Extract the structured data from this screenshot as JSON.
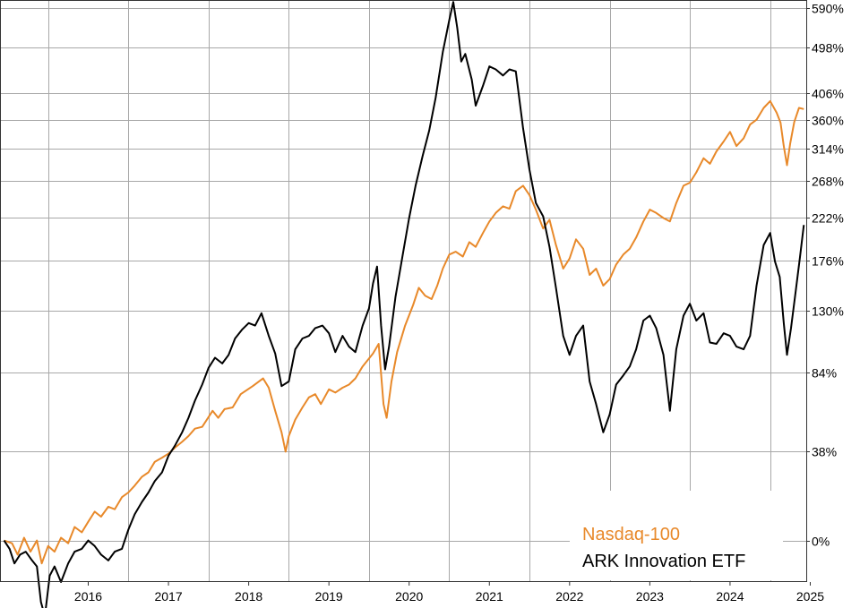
{
  "chart_data": {
    "type": "line",
    "title": "",
    "xlabel": "",
    "ylabel": "",
    "scale": "log(1 + return)",
    "xlim": [
      2015.4,
      2025.45
    ],
    "ylim": [
      "-14%",
      "610%"
    ],
    "x_ticks": [
      "2016",
      "2017",
      "2018",
      "2019",
      "2020",
      "2021",
      "2022",
      "2023",
      "2024",
      "2025"
    ],
    "y_ticks": [
      "590%",
      "498%",
      "406%",
      "360%",
      "314%",
      "268%",
      "222%",
      "176%",
      "130%",
      "84%",
      "38%",
      "0%"
    ],
    "grid": true,
    "legend_position": "bottom-right",
    "colors": {
      "nasdaq": "#e8892a",
      "ark": "#000000"
    },
    "series": [
      {
        "name": "Nasdaq-100",
        "color": "#e8892a",
        "points": [
          [
            2015.45,
            0
          ],
          [
            2015.55,
            -1
          ],
          [
            2015.62,
            -5
          ],
          [
            2015.7,
            1
          ],
          [
            2015.78,
            -4
          ],
          [
            2015.86,
            0
          ],
          [
            2015.92,
            -8
          ],
          [
            2016.0,
            -2
          ],
          [
            2016.08,
            -4
          ],
          [
            2016.16,
            1
          ],
          [
            2016.25,
            -1
          ],
          [
            2016.33,
            5
          ],
          [
            2016.42,
            3
          ],
          [
            2016.5,
            7
          ],
          [
            2016.58,
            11
          ],
          [
            2016.66,
            9
          ],
          [
            2016.75,
            13
          ],
          [
            2016.83,
            12
          ],
          [
            2016.92,
            17
          ],
          [
            2017.0,
            19
          ],
          [
            2017.08,
            22
          ],
          [
            2017.17,
            26
          ],
          [
            2017.25,
            28
          ],
          [
            2017.33,
            33
          ],
          [
            2017.42,
            35
          ],
          [
            2017.5,
            37
          ],
          [
            2017.58,
            40
          ],
          [
            2017.67,
            43
          ],
          [
            2017.75,
            46
          ],
          [
            2017.83,
            50
          ],
          [
            2017.92,
            51
          ],
          [
            2018.05,
            60
          ],
          [
            2018.12,
            56
          ],
          [
            2018.2,
            61
          ],
          [
            2018.3,
            62
          ],
          [
            2018.4,
            70
          ],
          [
            2018.55,
            75
          ],
          [
            2018.68,
            80
          ],
          [
            2018.75,
            74
          ],
          [
            2018.83,
            60
          ],
          [
            2018.91,
            48
          ],
          [
            2018.96,
            38
          ],
          [
            2019.0,
            46
          ],
          [
            2019.08,
            55
          ],
          [
            2019.17,
            62
          ],
          [
            2019.25,
            68
          ],
          [
            2019.33,
            70
          ],
          [
            2019.4,
            64
          ],
          [
            2019.5,
            73
          ],
          [
            2019.58,
            71
          ],
          [
            2019.67,
            74
          ],
          [
            2019.75,
            76
          ],
          [
            2019.83,
            80
          ],
          [
            2019.92,
            88
          ],
          [
            2020.05,
            97
          ],
          [
            2020.12,
            104
          ],
          [
            2020.18,
            64
          ],
          [
            2020.22,
            56
          ],
          [
            2020.28,
            78
          ],
          [
            2020.35,
            98
          ],
          [
            2020.45,
            118
          ],
          [
            2020.55,
            135
          ],
          [
            2020.62,
            150
          ],
          [
            2020.7,
            143
          ],
          [
            2020.78,
            140
          ],
          [
            2020.85,
            152
          ],
          [
            2020.92,
            168
          ],
          [
            2021.0,
            182
          ],
          [
            2021.08,
            185
          ],
          [
            2021.17,
            180
          ],
          [
            2021.25,
            195
          ],
          [
            2021.33,
            190
          ],
          [
            2021.42,
            205
          ],
          [
            2021.5,
            218
          ],
          [
            2021.58,
            228
          ],
          [
            2021.67,
            236
          ],
          [
            2021.75,
            233
          ],
          [
            2021.83,
            255
          ],
          [
            2021.92,
            262
          ],
          [
            2022.0,
            250
          ],
          [
            2022.08,
            232
          ],
          [
            2022.17,
            210
          ],
          [
            2022.25,
            220
          ],
          [
            2022.33,
            192
          ],
          [
            2022.42,
            168
          ],
          [
            2022.5,
            178
          ],
          [
            2022.58,
            198
          ],
          [
            2022.67,
            188
          ],
          [
            2022.75,
            162
          ],
          [
            2022.83,
            168
          ],
          [
            2022.92,
            152
          ],
          [
            2023.0,
            158
          ],
          [
            2023.08,
            172
          ],
          [
            2023.17,
            182
          ],
          [
            2023.25,
            188
          ],
          [
            2023.33,
            200
          ],
          [
            2023.42,
            218
          ],
          [
            2023.5,
            232
          ],
          [
            2023.58,
            228
          ],
          [
            2023.67,
            222
          ],
          [
            2023.75,
            218
          ],
          [
            2023.83,
            240
          ],
          [
            2023.92,
            262
          ],
          [
            2024.0,
            266
          ],
          [
            2024.08,
            280
          ],
          [
            2024.17,
            300
          ],
          [
            2024.25,
            292
          ],
          [
            2024.33,
            310
          ],
          [
            2024.42,
            325
          ],
          [
            2024.5,
            340
          ],
          [
            2024.58,
            318
          ],
          [
            2024.67,
            330
          ],
          [
            2024.75,
            352
          ],
          [
            2024.83,
            360
          ],
          [
            2024.92,
            380
          ],
          [
            2025.0,
            392
          ],
          [
            2025.08,
            372
          ],
          [
            2025.13,
            355
          ],
          [
            2025.17,
            318
          ],
          [
            2025.21,
            290
          ],
          [
            2025.25,
            322
          ],
          [
            2025.3,
            356
          ],
          [
            2025.36,
            380
          ],
          [
            2025.42,
            378
          ]
        ]
      },
      {
        "name": "ARK Innovation ETF",
        "color": "#000000",
        "points": [
          [
            2015.45,
            0
          ],
          [
            2015.52,
            -3
          ],
          [
            2015.58,
            -8
          ],
          [
            2015.65,
            -5
          ],
          [
            2015.72,
            -4
          ],
          [
            2015.8,
            -7
          ],
          [
            2015.86,
            -9
          ],
          [
            2015.91,
            -20
          ],
          [
            2015.96,
            -24
          ],
          [
            2016.02,
            -12
          ],
          [
            2016.08,
            -9
          ],
          [
            2016.16,
            -14
          ],
          [
            2016.25,
            -8
          ],
          [
            2016.33,
            -4
          ],
          [
            2016.42,
            -3
          ],
          [
            2016.5,
            0
          ],
          [
            2016.58,
            -2
          ],
          [
            2016.66,
            -5
          ],
          [
            2016.75,
            -7
          ],
          [
            2016.83,
            -4
          ],
          [
            2016.92,
            -3
          ],
          [
            2017.0,
            4
          ],
          [
            2017.08,
            10
          ],
          [
            2017.17,
            15
          ],
          [
            2017.25,
            19
          ],
          [
            2017.33,
            24
          ],
          [
            2017.42,
            28
          ],
          [
            2017.5,
            36
          ],
          [
            2017.58,
            41
          ],
          [
            2017.67,
            48
          ],
          [
            2017.75,
            56
          ],
          [
            2017.83,
            66
          ],
          [
            2017.92,
            76
          ],
          [
            2018.0,
            87
          ],
          [
            2018.08,
            94
          ],
          [
            2018.17,
            90
          ],
          [
            2018.25,
            96
          ],
          [
            2018.33,
            108
          ],
          [
            2018.42,
            115
          ],
          [
            2018.5,
            120
          ],
          [
            2018.58,
            118
          ],
          [
            2018.66,
            128
          ],
          [
            2018.75,
            110
          ],
          [
            2018.83,
            97
          ],
          [
            2018.91,
            75
          ],
          [
            2019.0,
            78
          ],
          [
            2019.08,
            100
          ],
          [
            2019.17,
            108
          ],
          [
            2019.25,
            110
          ],
          [
            2019.33,
            116
          ],
          [
            2019.42,
            118
          ],
          [
            2019.5,
            112
          ],
          [
            2019.58,
            98
          ],
          [
            2019.67,
            110
          ],
          [
            2019.75,
            102
          ],
          [
            2019.83,
            98
          ],
          [
            2019.92,
            118
          ],
          [
            2020.0,
            132
          ],
          [
            2020.05,
            154
          ],
          [
            2020.1,
            170
          ],
          [
            2020.15,
            118
          ],
          [
            2020.2,
            86
          ],
          [
            2020.25,
            102
          ],
          [
            2020.33,
            142
          ],
          [
            2020.42,
            182
          ],
          [
            2020.5,
            222
          ],
          [
            2020.58,
            262
          ],
          [
            2020.67,
            304
          ],
          [
            2020.75,
            342
          ],
          [
            2020.83,
            398
          ],
          [
            2020.92,
            488
          ],
          [
            2021.0,
            560
          ],
          [
            2021.05,
            605
          ],
          [
            2021.1,
            542
          ],
          [
            2021.15,
            468
          ],
          [
            2021.2,
            484
          ],
          [
            2021.28,
            432
          ],
          [
            2021.33,
            384
          ],
          [
            2021.42,
            420
          ],
          [
            2021.5,
            458
          ],
          [
            2021.58,
            452
          ],
          [
            2021.67,
            440
          ],
          [
            2021.75,
            452
          ],
          [
            2021.83,
            448
          ],
          [
            2021.92,
            346
          ],
          [
            2022.0,
            284
          ],
          [
            2022.08,
            240
          ],
          [
            2022.17,
            224
          ],
          [
            2022.25,
            190
          ],
          [
            2022.33,
            150
          ],
          [
            2022.42,
            110
          ],
          [
            2022.5,
            96
          ],
          [
            2022.58,
            110
          ],
          [
            2022.67,
            118
          ],
          [
            2022.75,
            78
          ],
          [
            2022.83,
            64
          ],
          [
            2022.92,
            48
          ],
          [
            2023.0,
            58
          ],
          [
            2023.08,
            76
          ],
          [
            2023.17,
            82
          ],
          [
            2023.25,
            88
          ],
          [
            2023.33,
            100
          ],
          [
            2023.42,
            122
          ],
          [
            2023.5,
            126
          ],
          [
            2023.58,
            116
          ],
          [
            2023.67,
            96
          ],
          [
            2023.75,
            60
          ],
          [
            2023.83,
            100
          ],
          [
            2023.92,
            126
          ],
          [
            2024.0,
            136
          ],
          [
            2024.08,
            122
          ],
          [
            2024.17,
            128
          ],
          [
            2024.25,
            105
          ],
          [
            2024.33,
            104
          ],
          [
            2024.42,
            112
          ],
          [
            2024.5,
            110
          ],
          [
            2024.58,
            102
          ],
          [
            2024.67,
            100
          ],
          [
            2024.75,
            110
          ],
          [
            2024.83,
            152
          ],
          [
            2024.92,
            192
          ],
          [
            2025.0,
            205
          ],
          [
            2025.06,
            175
          ],
          [
            2025.12,
            160
          ],
          [
            2025.17,
            120
          ],
          [
            2025.21,
            96
          ],
          [
            2025.26,
            116
          ],
          [
            2025.32,
            148
          ],
          [
            2025.37,
            178
          ],
          [
            2025.42,
            214
          ]
        ]
      }
    ]
  }
}
